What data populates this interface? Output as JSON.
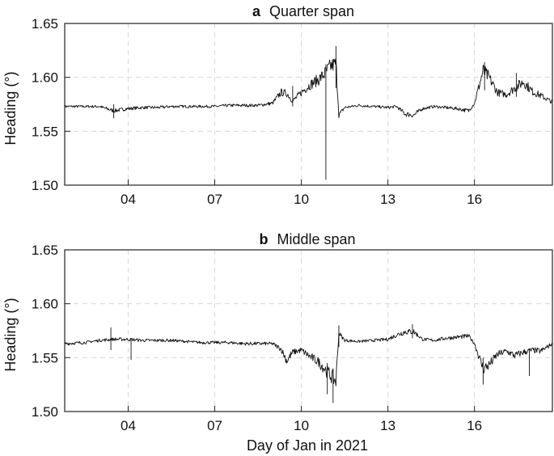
{
  "chart_data": [
    {
      "type": "line",
      "panel": "a",
      "title": "Quarter span",
      "ylabel": "Heading (°)",
      "xlabel": "",
      "ylim": [
        1.5,
        1.65
      ],
      "xlim": [
        1.8,
        18.7
      ],
      "yticks": [
        1.5,
        1.55,
        1.6,
        1.65
      ],
      "ytick_labels": [
        "1.50",
        "1.55",
        "1.60",
        "1.65"
      ],
      "xticks": [
        4,
        7,
        10,
        13,
        16
      ],
      "xtick_labels": [
        "04",
        "07",
        "10",
        "13",
        "16"
      ],
      "grid": true,
      "series": [
        {
          "x": [
            1.8,
            2.5,
            3.0,
            3.5,
            4.0,
            4.5,
            5.0,
            5.5,
            6.0,
            6.5,
            7.0,
            7.5,
            8.0,
            8.5,
            9.0,
            9.3,
            9.5,
            9.7,
            10.0,
            10.3,
            10.6,
            10.8,
            11.0,
            11.2,
            11.3,
            11.5,
            12.0,
            12.5,
            13.0,
            13.3,
            13.6,
            13.9,
            14.2,
            14.6,
            15.0,
            15.4,
            15.8,
            16.0,
            16.3,
            16.5,
            16.8,
            17.1,
            17.4,
            17.7,
            18.0,
            18.3,
            18.7
          ],
          "y": [
            1.573,
            1.573,
            1.573,
            1.569,
            1.571,
            1.572,
            1.572,
            1.573,
            1.573,
            1.573,
            1.573,
            1.574,
            1.574,
            1.574,
            1.576,
            1.586,
            1.585,
            1.578,
            1.586,
            1.593,
            1.598,
            1.603,
            1.61,
            1.613,
            1.565,
            1.572,
            1.574,
            1.573,
            1.572,
            1.573,
            1.566,
            1.565,
            1.571,
            1.573,
            1.572,
            1.571,
            1.569,
            1.576,
            1.606,
            1.6,
            1.586,
            1.584,
            1.59,
            1.596,
            1.587,
            1.583,
            1.577
          ]
        }
      ],
      "spikes": [
        {
          "x": 3.5,
          "ymin": 1.562,
          "ymax": 1.575
        },
        {
          "x": 9.7,
          "ymin": 1.573,
          "ymax": 1.592
        },
        {
          "x": 10.85,
          "ymin": 1.505,
          "ymax": 1.612
        },
        {
          "x": 11.2,
          "ymin": 1.59,
          "ymax": 1.629
        },
        {
          "x": 16.35,
          "ymin": 1.588,
          "ymax": 1.614
        },
        {
          "x": 17.45,
          "ymin": 1.582,
          "ymax": 1.604
        }
      ]
    },
    {
      "type": "line",
      "panel": "b",
      "title": "Middle span",
      "ylabel": "Heading (°)",
      "xlabel": "Day of Jan in 2021",
      "ylim": [
        1.5,
        1.65
      ],
      "xlim": [
        1.8,
        18.7
      ],
      "yticks": [
        1.5,
        1.55,
        1.6,
        1.65
      ],
      "ytick_labels": [
        "1.50",
        "1.55",
        "1.60",
        "1.65"
      ],
      "xticks": [
        4,
        7,
        10,
        13,
        16
      ],
      "xtick_labels": [
        "04",
        "07",
        "10",
        "13",
        "16"
      ],
      "grid": true,
      "series": [
        {
          "x": [
            1.8,
            2.5,
            3.0,
            3.5,
            4.0,
            4.5,
            5.0,
            5.5,
            6.0,
            6.5,
            7.0,
            7.5,
            8.0,
            8.5,
            9.0,
            9.3,
            9.5,
            9.7,
            10.0,
            10.3,
            10.6,
            10.8,
            11.0,
            11.2,
            11.3,
            11.5,
            12.0,
            12.5,
            13.0,
            13.3,
            13.6,
            13.9,
            14.2,
            14.6,
            15.0,
            15.4,
            15.8,
            16.0,
            16.3,
            16.5,
            16.8,
            17.1,
            17.4,
            17.7,
            18.0,
            18.3,
            18.7
          ],
          "y": [
            1.563,
            1.564,
            1.566,
            1.567,
            1.567,
            1.566,
            1.566,
            1.566,
            1.565,
            1.564,
            1.564,
            1.564,
            1.563,
            1.563,
            1.563,
            1.558,
            1.547,
            1.555,
            1.557,
            1.551,
            1.546,
            1.54,
            1.534,
            1.528,
            1.573,
            1.566,
            1.565,
            1.566,
            1.567,
            1.571,
            1.574,
            1.574,
            1.567,
            1.566,
            1.568,
            1.569,
            1.57,
            1.563,
            1.54,
            1.543,
            1.553,
            1.556,
            1.552,
            1.555,
            1.557,
            1.556,
            1.563
          ]
        }
      ],
      "spikes": [
        {
          "x": 3.4,
          "ymin": 1.557,
          "ymax": 1.578
        },
        {
          "x": 4.1,
          "ymin": 1.548,
          "ymax": 1.568
        },
        {
          "x": 10.9,
          "ymin": 1.516,
          "ymax": 1.545
        },
        {
          "x": 11.1,
          "ymin": 1.508,
          "ymax": 1.54
        },
        {
          "x": 11.3,
          "ymin": 1.56,
          "ymax": 1.58
        },
        {
          "x": 13.85,
          "ymin": 1.568,
          "ymax": 1.581
        },
        {
          "x": 16.3,
          "ymin": 1.525,
          "ymax": 1.55
        },
        {
          "x": 17.9,
          "ymin": 1.533,
          "ymax": 1.558
        }
      ]
    }
  ]
}
